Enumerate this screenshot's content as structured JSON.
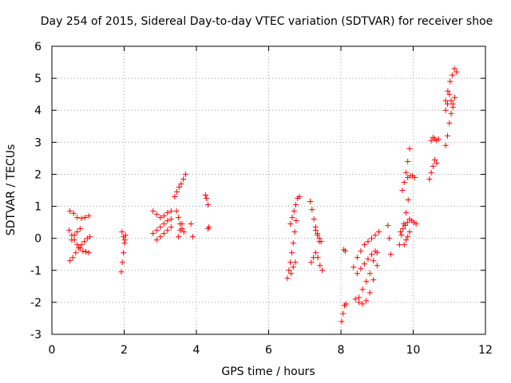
{
  "chart_data": {
    "type": "scatter",
    "title": "Day 254 of 2015, Sidereal Day-to-day VTEC variation (SDTVAR) for receiver shoe",
    "xlabel": "GPS time / hours",
    "ylabel": "SDTVAR / TECUs",
    "xlim": [
      0,
      12
    ],
    "ylim": [
      -3,
      6
    ],
    "xticks": [
      0,
      2,
      4,
      6,
      8,
      10,
      12
    ],
    "yticks": [
      -3,
      -2,
      -1,
      0,
      1,
      2,
      3,
      4,
      5,
      6
    ],
    "xtick_labels": [
      "0",
      "2",
      "4",
      "6",
      "8",
      "10",
      "12"
    ],
    "ytick_labels": [
      "-3",
      "-2",
      "-1",
      "0",
      "1",
      "2",
      "3",
      "4",
      "5",
      "6"
    ],
    "grid": true,
    "marker": "+",
    "color": "#ff0000",
    "series": [
      {
        "name": "SDTVAR",
        "segments": [
          {
            "x": [
              0.5,
              0.6,
              0.7,
              0.82,
              0.92,
              1.02
            ],
            "y": [
              0.85,
              0.78,
              0.65,
              0.62,
              0.65,
              0.7
            ]
          },
          {
            "x": [
              0.48,
              0.55,
              0.62,
              0.7,
              0.78,
              0.86,
              0.94,
              1.02
            ],
            "y": [
              0.25,
              0.1,
              -0.05,
              -0.2,
              -0.3,
              -0.4,
              -0.42,
              -0.45
            ]
          },
          {
            "x": [
              0.5,
              0.58,
              0.66,
              0.74,
              0.82,
              0.9,
              0.98,
              1.05
            ],
            "y": [
              -0.7,
              -0.6,
              -0.45,
              -0.3,
              -0.2,
              -0.1,
              0.0,
              0.05
            ]
          },
          {
            "x": [
              0.55,
              0.62,
              0.7,
              0.78
            ],
            "y": [
              -0.05,
              0.1,
              0.2,
              0.3
            ]
          },
          {
            "x": [
              1.92,
              1.95,
              1.98,
              2.01,
              2.04
            ],
            "y": [
              -1.05,
              -0.75,
              -0.45,
              -0.15,
              0.1
            ]
          },
          {
            "x": [
              1.94,
              1.98,
              2.02
            ],
            "y": [
              0.2,
              0.05,
              -0.05
            ]
          },
          {
            "x": [
              2.8,
              2.9,
              3.0,
              3.1,
              3.2,
              3.3
            ],
            "y": [
              0.85,
              0.75,
              0.65,
              0.7,
              0.8,
              0.85
            ]
          },
          {
            "x": [
              2.8,
              2.9,
              3.0,
              3.1,
              3.2,
              3.3
            ],
            "y": [
              0.15,
              0.25,
              0.35,
              0.45,
              0.55,
              0.6
            ]
          },
          {
            "x": [
              2.9,
              3.0,
              3.1,
              3.2,
              3.3
            ],
            "y": [
              -0.05,
              0.05,
              0.15,
              0.25,
              0.35
            ]
          },
          {
            "x": [
              3.4,
              3.46,
              3.52,
              3.58,
              3.64,
              3.7
            ],
            "y": [
              1.3,
              1.45,
              1.6,
              1.7,
              1.85,
              2.0
            ]
          },
          {
            "x": [
              3.45,
              3.5,
              3.55,
              3.6,
              3.65
            ],
            "y": [
              0.85,
              0.65,
              0.45,
              0.3,
              0.2
            ]
          },
          {
            "x": [
              3.5,
              3.55,
              3.6
            ],
            "y": [
              0.05,
              0.25,
              0.45
            ]
          },
          {
            "x": [
              3.85,
              3.9
            ],
            "y": [
              0.45,
              0.05
            ]
          },
          {
            "x": [
              4.25,
              4.28,
              4.32,
              4.35,
              4.32
            ],
            "y": [
              1.35,
              1.25,
              1.05,
              0.35,
              0.3
            ]
          },
          {
            "x": [
              6.52,
              6.56,
              6.6,
              6.64,
              6.68,
              6.72,
              6.76
            ],
            "y": [
              -1.25,
              -1.0,
              -0.75,
              -0.45,
              -0.15,
              0.2,
              0.55
            ]
          },
          {
            "x": [
              6.6,
              6.65,
              6.7,
              6.75,
              6.8,
              6.85
            ],
            "y": [
              0.45,
              0.65,
              0.85,
              1.05,
              1.25,
              1.3
            ]
          },
          {
            "x": [
              6.62,
              6.68,
              6.74
            ],
            "y": [
              -1.1,
              -0.9,
              -0.75
            ]
          },
          {
            "x": [
              7.15,
              7.2,
              7.25,
              7.3,
              7.35,
              7.4
            ],
            "y": [
              1.15,
              0.9,
              0.6,
              0.35,
              0.1,
              -0.1
            ]
          },
          {
            "x": [
              7.18,
              7.24,
              7.3,
              7.36,
              7.42,
              7.48
            ],
            "y": [
              -0.75,
              -0.6,
              -0.45,
              -0.6,
              -0.85,
              -1.0
            ]
          },
          {
            "x": [
              7.3,
              7.35,
              7.4,
              7.45
            ],
            "y": [
              0.25,
              0.15,
              0.0,
              -0.1
            ]
          },
          {
            "x": [
              8.02,
              8.06,
              8.1,
              8.14
            ],
            "y": [
              -2.6,
              -2.35,
              -2.1,
              -2.05
            ]
          },
          {
            "x": [
              8.08,
              8.12
            ],
            "y": [
              -0.35,
              -0.4
            ]
          },
          {
            "x": [
              8.35,
              8.45,
              8.55,
              8.65,
              8.75,
              8.85,
              8.95,
              9.05
            ],
            "y": [
              -0.9,
              -0.6,
              -0.4,
              -0.2,
              -0.1,
              0.0,
              0.1,
              0.2
            ]
          },
          {
            "x": [
              8.4,
              8.5,
              8.6,
              8.7,
              8.8,
              8.9,
              9.0
            ],
            "y": [
              -1.9,
              -2.0,
              -2.05,
              -1.95,
              -1.7,
              -1.3,
              -0.85
            ]
          },
          {
            "x": [
              8.45,
              8.55,
              8.65,
              8.75,
              8.85,
              8.95
            ],
            "y": [
              -1.1,
              -0.95,
              -0.8,
              -0.65,
              -0.5,
              -0.4
            ]
          },
          {
            "x": [
              8.5,
              8.6,
              8.7,
              8.8,
              8.9,
              9.0
            ],
            "y": [
              -1.85,
              -1.6,
              -1.35,
              -1.1,
              -0.7,
              -0.45
            ]
          },
          {
            "x": [
              9.3,
              9.34,
              9.38
            ],
            "y": [
              0.4,
              0.0,
              -0.5
            ]
          },
          {
            "x": [
              9.65,
              9.72,
              9.78,
              9.84,
              9.9,
              9.96,
              10.02,
              10.08
            ],
            "y": [
              0.2,
              0.3,
              0.4,
              0.5,
              0.6,
              0.55,
              0.5,
              0.45
            ]
          },
          {
            "x": [
              9.62,
              9.68,
              9.74,
              9.8,
              9.86
            ],
            "y": [
              -0.2,
              0.1,
              0.45,
              0.8,
              1.2
            ]
          },
          {
            "x": [
              9.7,
              9.75,
              9.8,
              9.85,
              9.9
            ],
            "y": [
              1.5,
              1.75,
              2.05,
              2.4,
              2.8
            ]
          },
          {
            "x": [
              9.85,
              9.92,
              9.98,
              10.04
            ],
            "y": [
              1.9,
              1.95,
              1.95,
              1.9
            ]
          },
          {
            "x": [
              9.75,
              9.8,
              9.85,
              9.9
            ],
            "y": [
              -0.2,
              -0.05,
              0.05,
              0.2
            ]
          },
          {
            "x": [
              10.45,
              10.5,
              10.55,
              10.6,
              10.65
            ],
            "y": [
              1.85,
              2.05,
              2.25,
              2.45,
              2.35
            ]
          },
          {
            "x": [
              10.5,
              10.55,
              10.6,
              10.65,
              10.7
            ],
            "y": [
              3.05,
              3.15,
              3.1,
              3.05,
              3.1
            ]
          },
          {
            "x": [
              10.9,
              10.95,
              11.0,
              11.05,
              11.1,
              11.15
            ],
            "y": [
              2.9,
              3.2,
              3.6,
              3.9,
              4.2,
              4.4
            ]
          },
          {
            "x": [
              10.9,
              10.96,
              11.02,
              11.08,
              11.14,
              11.2
            ],
            "y": [
              4.3,
              4.6,
              4.9,
              5.1,
              5.3,
              5.2
            ]
          },
          {
            "x": [
              10.9,
              10.95,
              11.0,
              11.05,
              11.1
            ],
            "y": [
              4.0,
              4.2,
              4.5,
              4.3,
              4.1
            ]
          }
        ]
      }
    ]
  }
}
